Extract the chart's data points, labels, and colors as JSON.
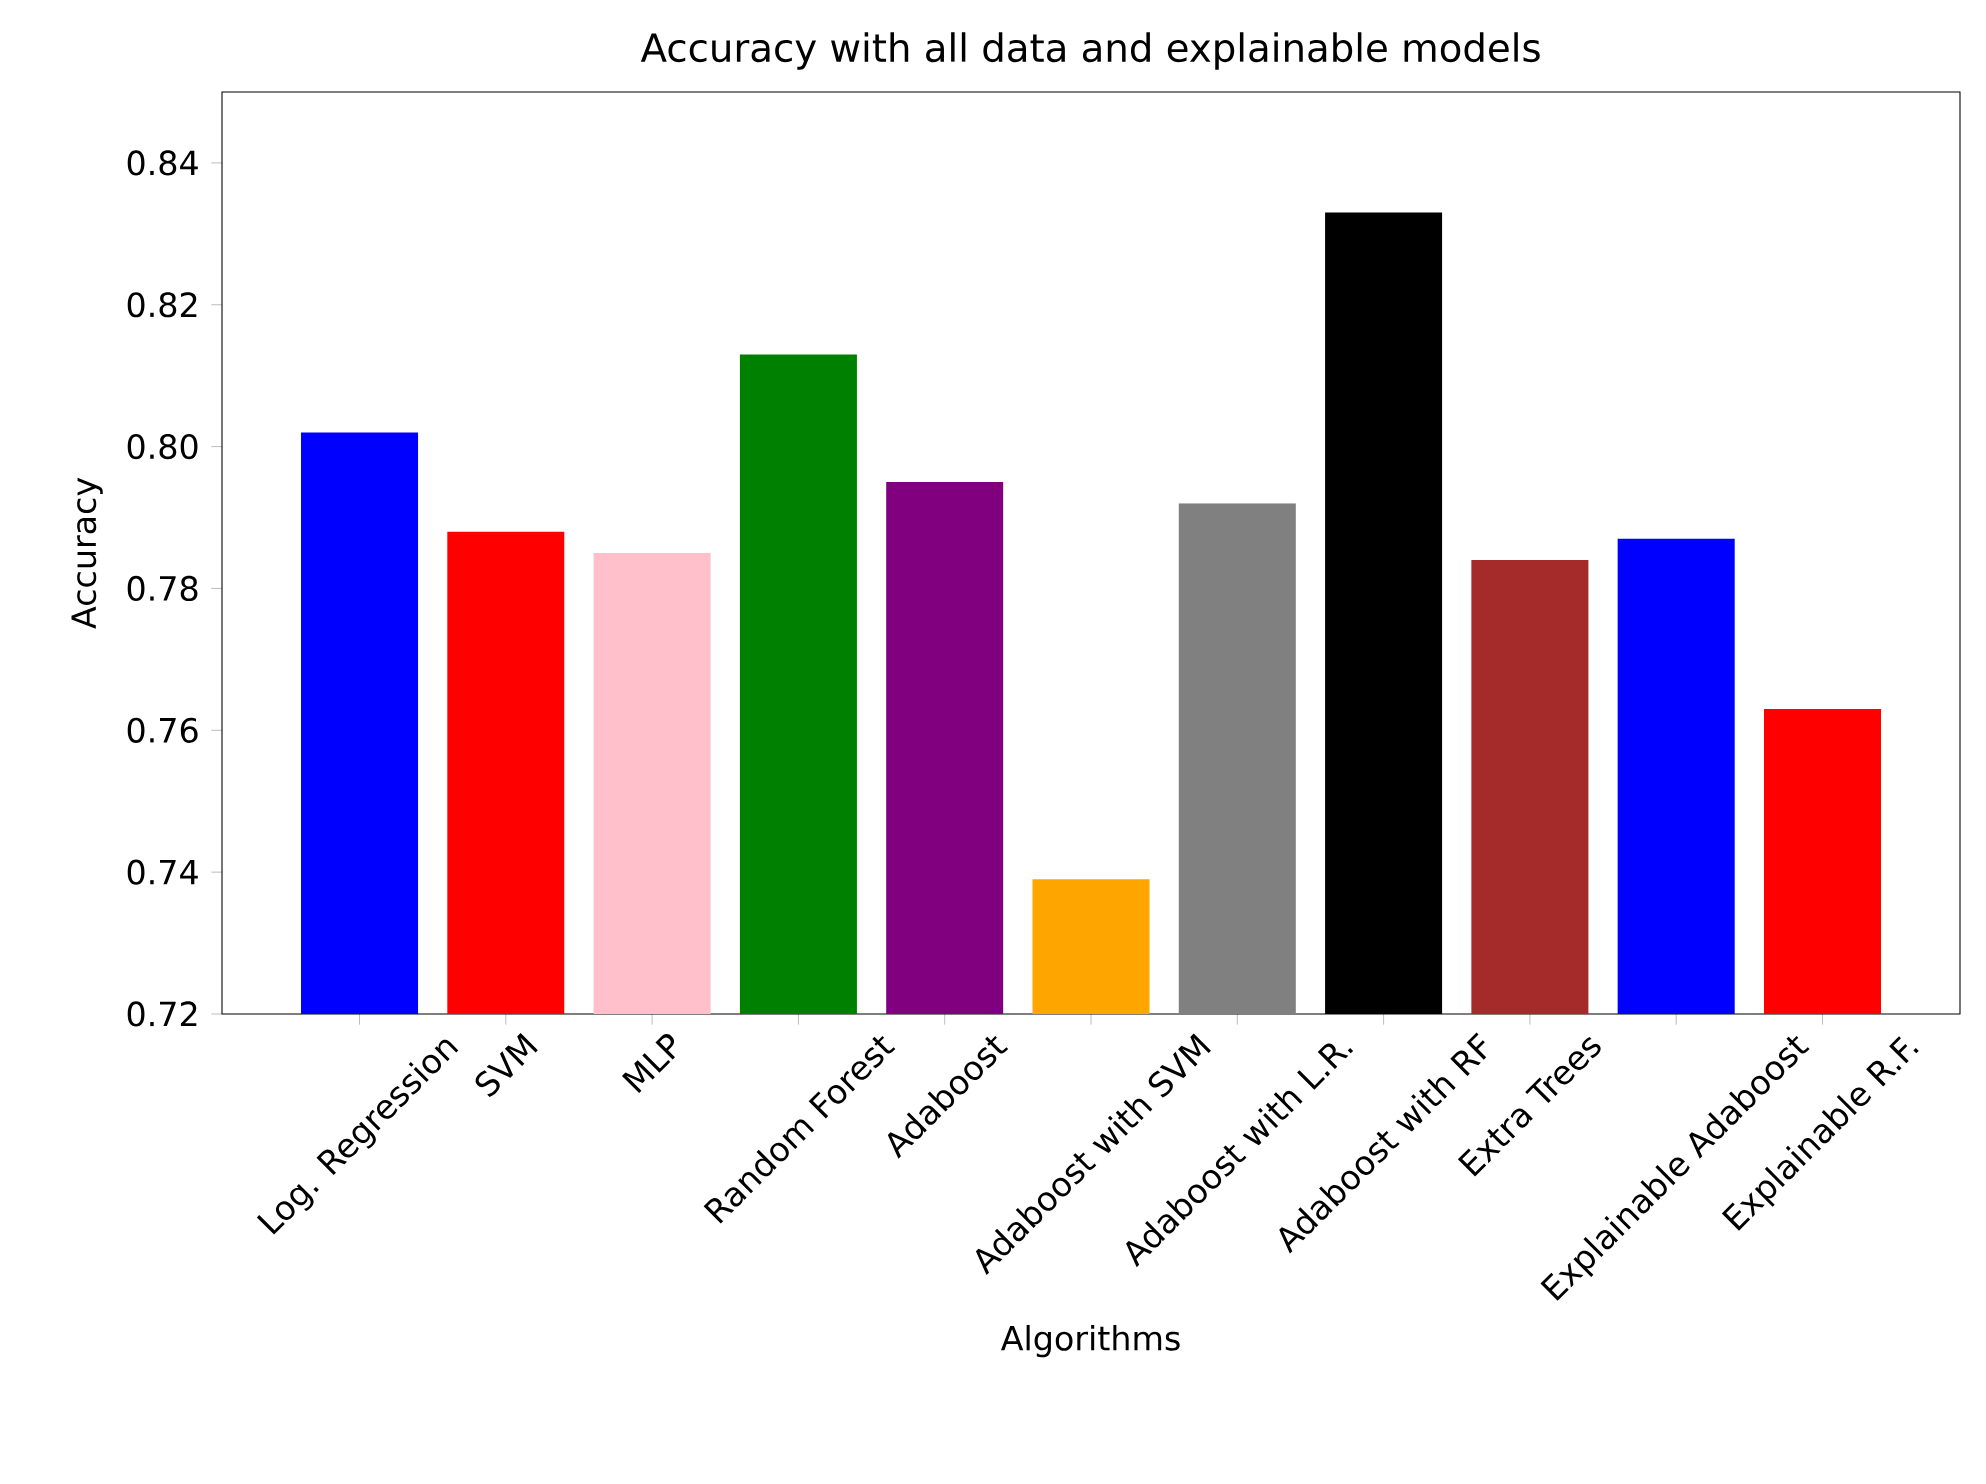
{
  "chart_data": {
    "type": "bar",
    "title": "Accuracy with all data and explainable models",
    "xlabel": "Algorithms",
    "ylabel": "Accuracy",
    "categories": [
      "Log. Regression",
      "SVM",
      "MLP",
      "Random Forest",
      "Adaboost",
      "Adaboost with SVM",
      "Adaboost with L.R.",
      "Adaboost with RF",
      "Extra Trees",
      "Explainable Adaboost",
      "Explainable R.F."
    ],
    "values": [
      0.802,
      0.788,
      0.785,
      0.813,
      0.795,
      0.739,
      0.792,
      0.833,
      0.784,
      0.787,
      0.763
    ],
    "colors": [
      "#0000ff",
      "#ff0000",
      "#ffc0cb",
      "#008000",
      "#800080",
      "#ffa500",
      "#808080",
      "#000000",
      "#a52a2a",
      "#0000ff",
      "#ff0000"
    ],
    "ylim": [
      0.72,
      0.85
    ],
    "yticks": [
      0.72,
      0.74,
      0.76,
      0.78,
      {
        "value": 0.8,
        "label": "0.80"
      },
      0.82,
      0.84
    ]
  }
}
